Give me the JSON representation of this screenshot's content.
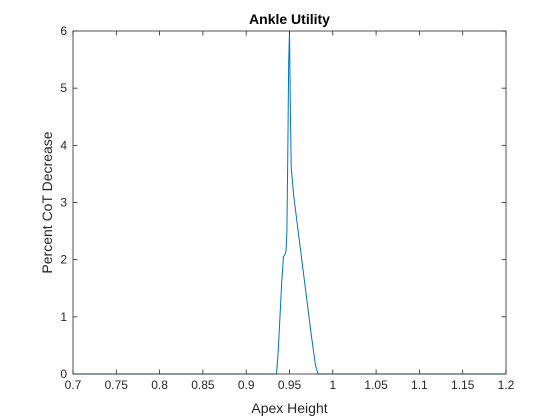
{
  "chart_data": {
    "type": "line",
    "title": "Ankle Utility",
    "xlabel": "Apex Height",
    "ylabel": "Percent CoT Decrease",
    "xlim": [
      0.7,
      1.2
    ],
    "ylim": [
      0,
      6
    ],
    "xticks": [
      "0.7",
      "0.75",
      "0.8",
      "0.85",
      "0.9",
      "0.95",
      "1",
      "1.05",
      "1.1",
      "1.15",
      "1.2"
    ],
    "yticks": [
      "0",
      "1",
      "2",
      "3",
      "4",
      "5",
      "6"
    ],
    "grid": false,
    "legend": "none",
    "series": [
      {
        "color": "#0072BD",
        "x": [
          0.7,
          0.935,
          0.937,
          0.939,
          0.941,
          0.943,
          0.945,
          0.946,
          0.947,
          0.948,
          0.9485,
          0.949,
          0.95,
          0.951,
          0.952,
          0.955,
          0.96,
          0.965,
          0.97,
          0.975,
          0.98,
          0.983,
          1.2
        ],
        "y": [
          0,
          0,
          0.4,
          1.0,
          1.6,
          2.05,
          2.1,
          2.15,
          2.5,
          3.8,
          4.6,
          5.4,
          6.0,
          4.6,
          3.6,
          3.1,
          2.5,
          1.9,
          1.3,
          0.7,
          0.15,
          0,
          0
        ]
      }
    ]
  }
}
